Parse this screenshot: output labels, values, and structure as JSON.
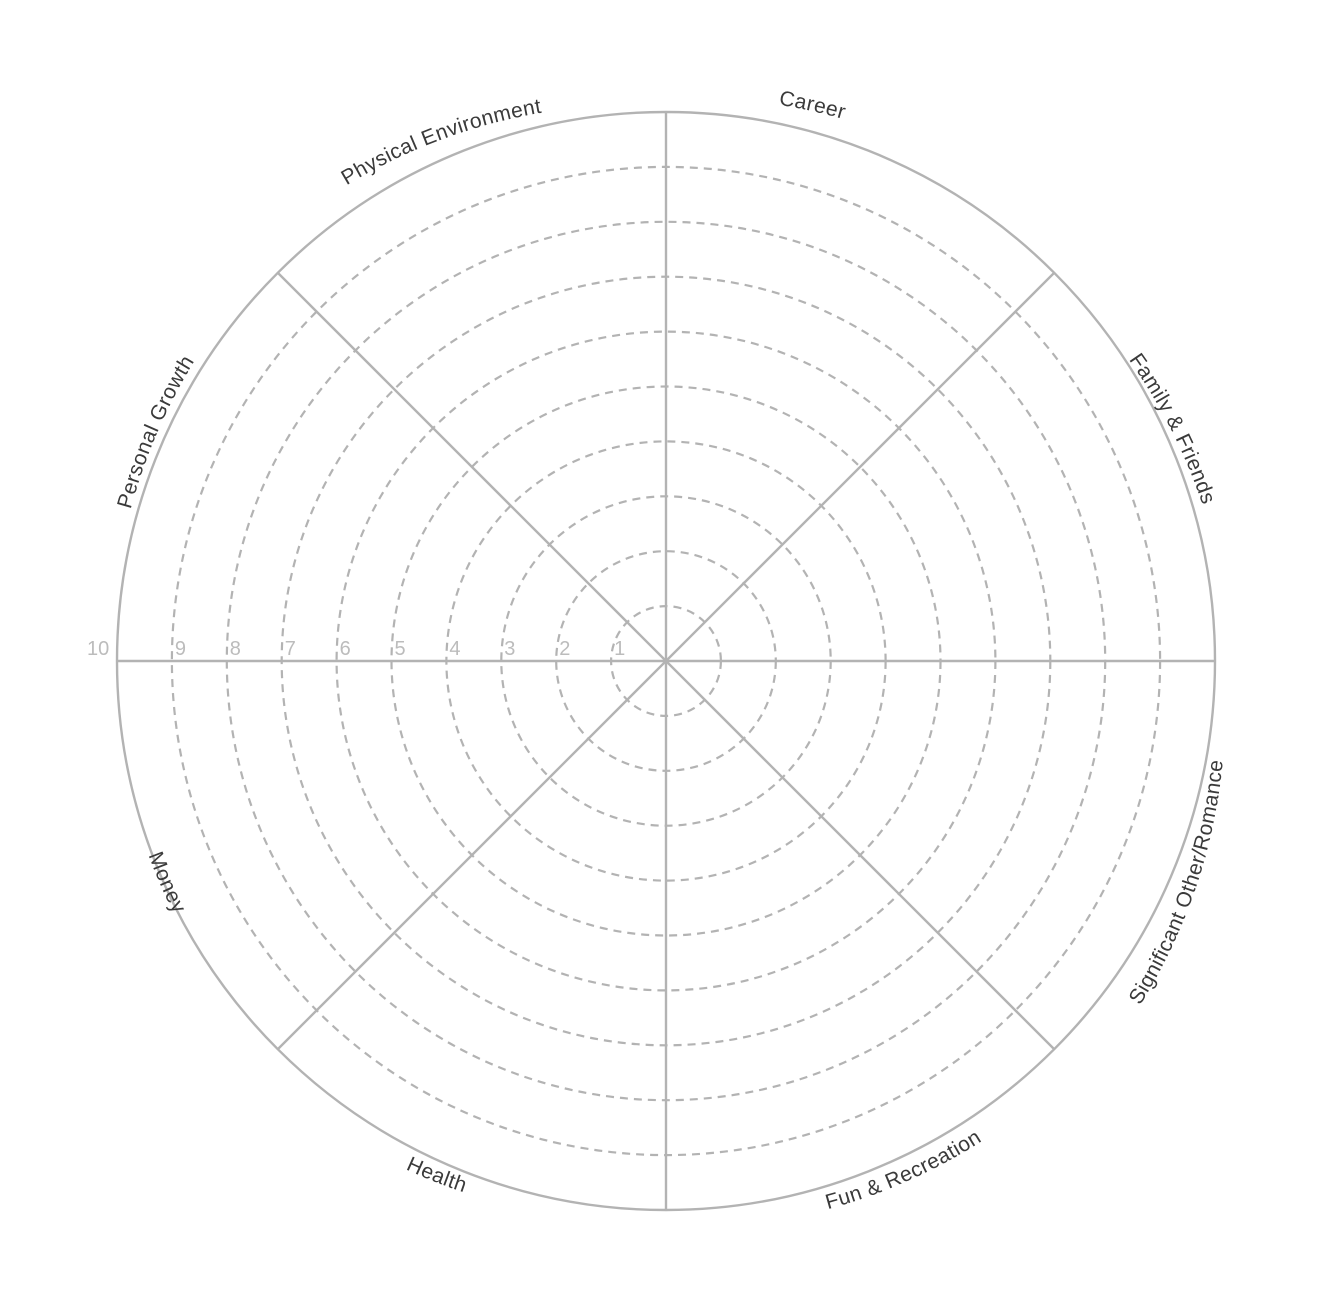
{
  "wheel": {
    "categories": [
      "Career",
      "Family & Friends",
      "Significant  Other/Romance",
      "Fun & Recreation",
      "Health",
      "Money",
      "Personal Growth",
      "Physical Environment"
    ],
    "scale": [
      "1",
      "2",
      "3",
      "4",
      "5",
      "6",
      "7",
      "8",
      "9",
      "10"
    ],
    "colors": {
      "line": "#b3b3b3",
      "label_text": "#3a3a3a",
      "scale_text": "#bcbcbc",
      "background": "#ffffff"
    }
  }
}
